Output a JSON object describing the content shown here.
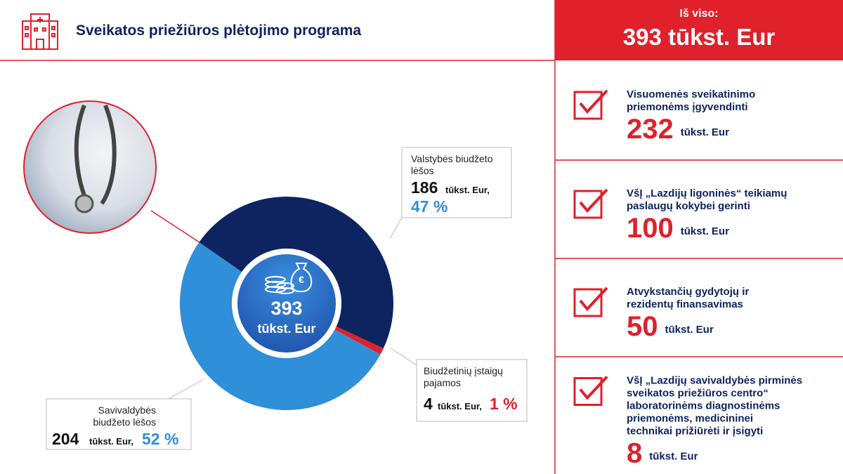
{
  "chart_data": {
    "type": "donut",
    "title": "Sveikatos priežiūros plėtojimo programa",
    "center_value": 393,
    "center_unit": "tūkst. Eur",
    "categories": [
      "Valstybės biudžeto lėšos",
      "Biudžetinių įstaigų pajamos",
      "Savivaldybės biudžeto lėšos"
    ],
    "values": [
      186,
      4,
      204
    ],
    "unit": "tūkst. Eur,",
    "share_labels": [
      "47 %",
      "1 %",
      "52 %"
    ],
    "colors": [
      "#0d2461",
      "#e0202a",
      "#2f8fd8"
    ]
  },
  "summary": {
    "label": "Iš viso:",
    "value": 393,
    "unit": "tūkst. Eur",
    "items": [
      {
        "lines": [
          "Visuomenės sveikatinimo",
          "priemonėms įgyvendinti"
        ],
        "value": 232,
        "unit": "tūkst. Eur"
      },
      {
        "lines": [
          "VšĮ „Lazdijų ligoninės“ teikiamų",
          "paslaugų kokybei gerinti"
        ],
        "value": 100,
        "unit": "tūkst. Eur"
      },
      {
        "lines": [
          "Atvykstančių gydytojų ir",
          "rezidentų finansavimas"
        ],
        "value": 50,
        "unit": "tūkst. Eur"
      },
      {
        "lines": [
          "VšĮ „Lazdijų savivaldybės pirminės",
          "sveikatos priežiūros centro“",
          "laboratorinėms diagnostinėms",
          "priemonėms, medicininei",
          "technikai prižiūrėti ir įsigyti"
        ],
        "value": 8,
        "unit": "tūkst. Eur"
      }
    ]
  }
}
